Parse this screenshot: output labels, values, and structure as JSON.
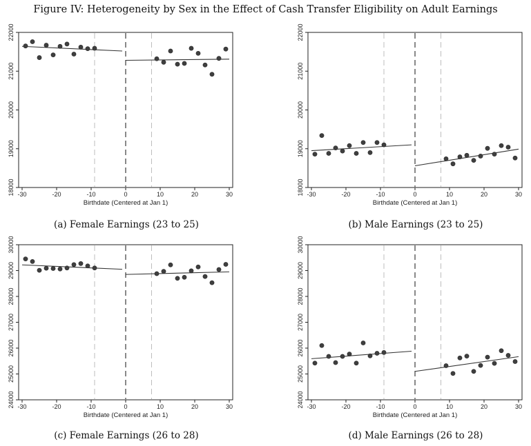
{
  "figure": {
    "title": "Figure IV: Heterogeneity by Sex in the Effect of Cash Transfer Eligibility on Adult Earnings"
  },
  "chart_data": [
    {
      "type": "scatter",
      "caption": "(a) Female Earnings (23 to 25)",
      "xlabel": "Birthdate (Centered at Jan 1)",
      "ylabel": "",
      "xlim": [
        -31,
        31
      ],
      "ylim": [
        18000,
        22000
      ],
      "xticks": [
        -30,
        -20,
        -10,
        0,
        10,
        20,
        30
      ],
      "yticks": [
        18000,
        19000,
        20000,
        21000,
        22000
      ],
      "cutoff": 0,
      "dashed_guides": [
        -9,
        7.5
      ],
      "x": [
        -29,
        -27,
        -25,
        -23,
        -21,
        -19,
        -17,
        -15,
        -13,
        -11,
        -9,
        9,
        11,
        13,
        15,
        17,
        19,
        21,
        23,
        25,
        27,
        29
      ],
      "y": [
        21650,
        21760,
        21350,
        21670,
        21420,
        21640,
        21700,
        21440,
        21620,
        21580,
        21590,
        21320,
        21230,
        21520,
        21180,
        21200,
        21590,
        21460,
        21160,
        20920,
        21330,
        21570
      ],
      "fit_left": {
        "x": [
          -30,
          -1
        ],
        "y": [
          21640,
          21520
        ]
      },
      "fit_right": {
        "x": [
          0,
          30
        ],
        "y": [
          21280,
          21310
        ]
      }
    },
    {
      "type": "scatter",
      "caption": "(b) Male Earnings (23 to 25)",
      "xlabel": "Birthdate (Centered at Jan 1)",
      "ylabel": "",
      "xlim": [
        -31,
        31
      ],
      "ylim": [
        18000,
        22000
      ],
      "xticks": [
        -30,
        -20,
        -10,
        0,
        10,
        20,
        30
      ],
      "yticks": [
        18000,
        19000,
        20000,
        21000,
        22000
      ],
      "cutoff": 0,
      "dashed_guides": [
        -9,
        7.5
      ],
      "x": [
        -29,
        -27,
        -25,
        -23,
        -21,
        -19,
        -17,
        -15,
        -13,
        -11,
        -9,
        9,
        11,
        13,
        15,
        17,
        19,
        21,
        23,
        25,
        27,
        29
      ],
      "y": [
        18860,
        19340,
        18880,
        19020,
        18940,
        19080,
        18880,
        19160,
        18900,
        19160,
        19100,
        18740,
        18610,
        18790,
        18830,
        18700,
        18810,
        19010,
        18860,
        19080,
        19040,
        18760
      ],
      "fit_left": {
        "x": [
          -30,
          -1
        ],
        "y": [
          18950,
          19100
        ]
      },
      "fit_right": {
        "x": [
          0,
          30
        ],
        "y": [
          18560,
          18990
        ]
      }
    },
    {
      "type": "scatter",
      "caption": "(c) Female Earnings (26 to 28)",
      "xlabel": "Birthdate (Centered at Jan 1)",
      "ylabel": "",
      "xlim": [
        -31,
        31
      ],
      "ylim": [
        24000,
        30000
      ],
      "xticks": [
        -30,
        -20,
        -10,
        0,
        10,
        20,
        30
      ],
      "yticks": [
        24000,
        25000,
        26000,
        27000,
        28000,
        29000,
        30000
      ],
      "cutoff": 0,
      "dashed_guides": [
        -9,
        7.5
      ],
      "x": [
        -29,
        -27,
        -25,
        -23,
        -21,
        -19,
        -17,
        -15,
        -13,
        -11,
        -9,
        9,
        11,
        13,
        15,
        17,
        19,
        21,
        23,
        25,
        27,
        29
      ],
      "y": [
        29450,
        29350,
        29010,
        29090,
        29080,
        29060,
        29100,
        29230,
        29270,
        29180,
        29100,
        28880,
        28970,
        29220,
        28700,
        28740,
        28990,
        29140,
        28770,
        28530,
        29040,
        29240
      ],
      "fit_left": {
        "x": [
          -30,
          -1
        ],
        "y": [
          29220,
          29050
        ]
      },
      "fit_right": {
        "x": [
          0,
          30
        ],
        "y": [
          28850,
          28950
        ]
      }
    },
    {
      "type": "scatter",
      "caption": "(d) Male Earnings (26 to 28)",
      "xlabel": "Birthdate (Centered at Jan 1)",
      "ylabel": "",
      "xlim": [
        -31,
        31
      ],
      "ylim": [
        24000,
        30000
      ],
      "xticks": [
        -30,
        -20,
        -10,
        0,
        10,
        20,
        30
      ],
      "yticks": [
        24000,
        25000,
        26000,
        27000,
        28000,
        29000,
        30000
      ],
      "cutoff": 0,
      "dashed_guides": [
        -9,
        7.5
      ],
      "x": [
        -29,
        -27,
        -25,
        -23,
        -21,
        -19,
        -17,
        -15,
        -13,
        -11,
        -9,
        9,
        11,
        13,
        15,
        17,
        19,
        21,
        23,
        25,
        27,
        29
      ],
      "y": [
        25420,
        26100,
        25680,
        25440,
        25680,
        25770,
        25420,
        26200,
        25700,
        25800,
        25830,
        25320,
        25020,
        25620,
        25690,
        25100,
        25330,
        25650,
        25410,
        25900,
        25720,
        25480
      ],
      "fit_left": {
        "x": [
          -30,
          -1
        ],
        "y": [
          25590,
          25880
        ]
      },
      "fit_right": {
        "x": [
          0,
          30
        ],
        "y": [
          25100,
          25670
        ]
      }
    }
  ]
}
